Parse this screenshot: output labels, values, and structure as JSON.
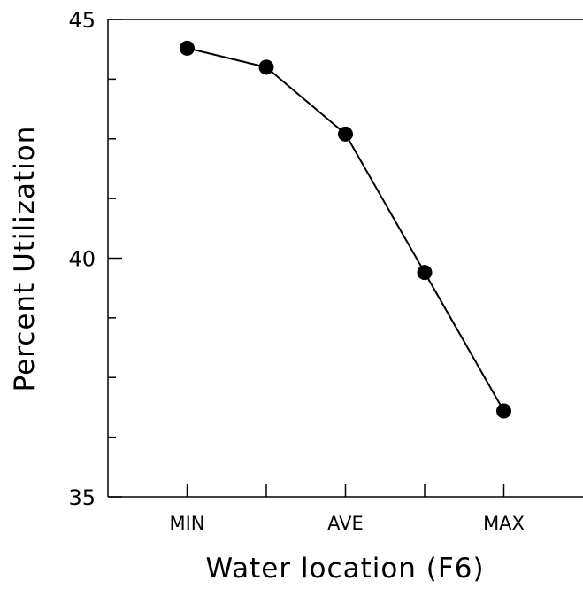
{
  "chart_data": {
    "type": "line",
    "title": "",
    "xlabel": "Water location (F6)",
    "ylabel": "Percent Utilization",
    "x_positions": [
      1,
      2,
      3,
      4,
      5
    ],
    "x_tick_positions": [
      1,
      2,
      3,
      4,
      5
    ],
    "x_tick_labels": [
      "MIN",
      "",
      "AVE",
      "",
      "MAX"
    ],
    "xlim": [
      0,
      6
    ],
    "ylim": [
      35,
      45
    ],
    "y_ticks": [
      35,
      40,
      45
    ],
    "y_minor_ticks": [
      36.25,
      37.5,
      38.75,
      41.25,
      42.5,
      43.75
    ],
    "y_tick_labels": [
      "35",
      "40",
      "45"
    ],
    "series": [
      {
        "values": [
          44.4,
          44.0,
          42.6,
          39.7,
          36.8
        ]
      }
    ],
    "grid": false,
    "legend": "none"
  }
}
